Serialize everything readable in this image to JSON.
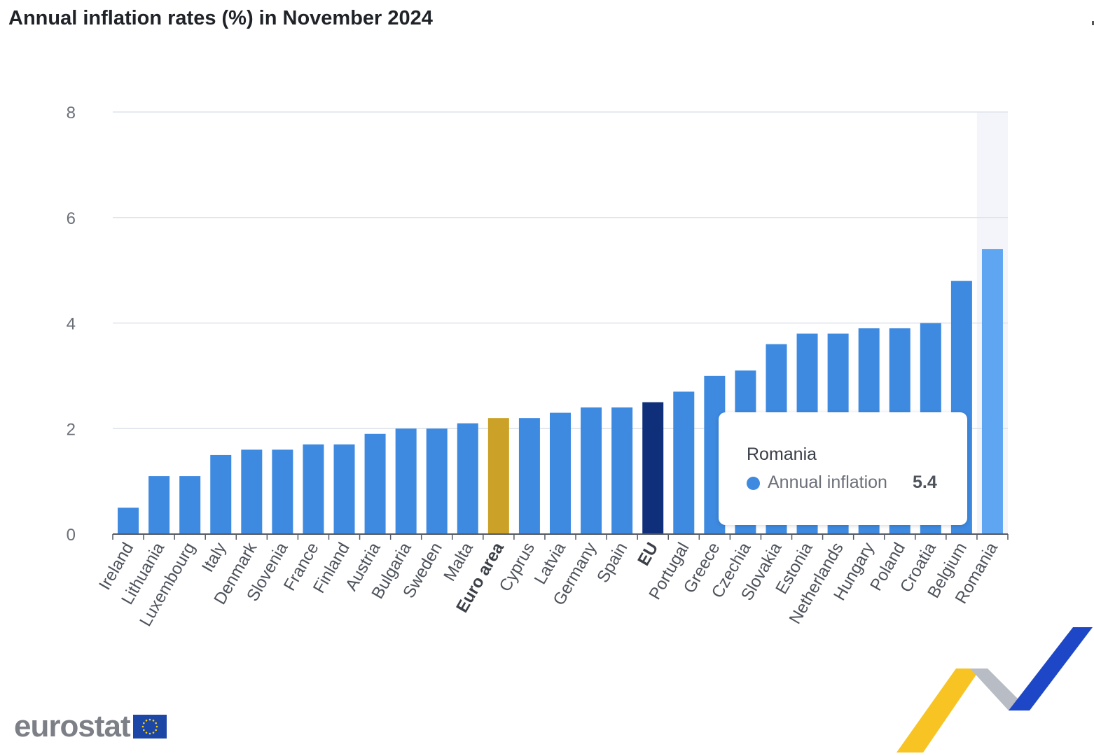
{
  "page": {
    "title": "Annual inflation rates (%) in November 2024"
  },
  "chart_data": {
    "type": "bar",
    "title": "Annual inflation rates (%) in November 2024",
    "xlabel": "",
    "ylabel": "",
    "ylim": [
      0,
      8
    ],
    "yticks": [
      0,
      2,
      4,
      6,
      8
    ],
    "grid": true,
    "categories": [
      "Ireland",
      "Lithuania",
      "Luxembourg",
      "Italy",
      "Denmark",
      "Slovenia",
      "France",
      "Finland",
      "Austria",
      "Bulgaria",
      "Sweden",
      "Malta",
      "Euro area",
      "Cyprus",
      "Latvia",
      "Germany",
      "Spain",
      "EU",
      "Portugal",
      "Greece",
      "Czechia",
      "Slovakia",
      "Estonia",
      "Netherlands",
      "Hungary",
      "Poland",
      "Croatia",
      "Belgium",
      "Romania"
    ],
    "series": [
      {
        "name": "Annual inflation",
        "values": [
          0.5,
          1.1,
          1.1,
          1.5,
          1.6,
          1.6,
          1.7,
          1.7,
          1.9,
          2.0,
          2.0,
          2.1,
          2.2,
          2.2,
          2.3,
          2.4,
          2.4,
          2.5,
          2.7,
          3.0,
          3.1,
          3.6,
          3.8,
          3.8,
          3.9,
          3.9,
          4.0,
          4.8,
          5.4
        ]
      }
    ],
    "highlighted_categories": [
      "Euro area",
      "EU"
    ],
    "hovered_category": "Romania",
    "colors": {
      "default_bar": "#3e8ae0",
      "euro_area_bar": "#cba227",
      "eu_bar": "#0f2f7a",
      "hovered_bar": "#5fa6f2",
      "hover_band": "#f4f5fa",
      "grid": "#dde3ea",
      "axis": "#555a63"
    }
  },
  "tooltip": {
    "category": "Romania",
    "series_name": "Annual inflation",
    "value": "5.4",
    "marker_color": "#3e8ae0"
  },
  "branding": {
    "logo_text": "eurostat",
    "flag_color": "#1d47a6",
    "star_color": "#ffd200"
  }
}
